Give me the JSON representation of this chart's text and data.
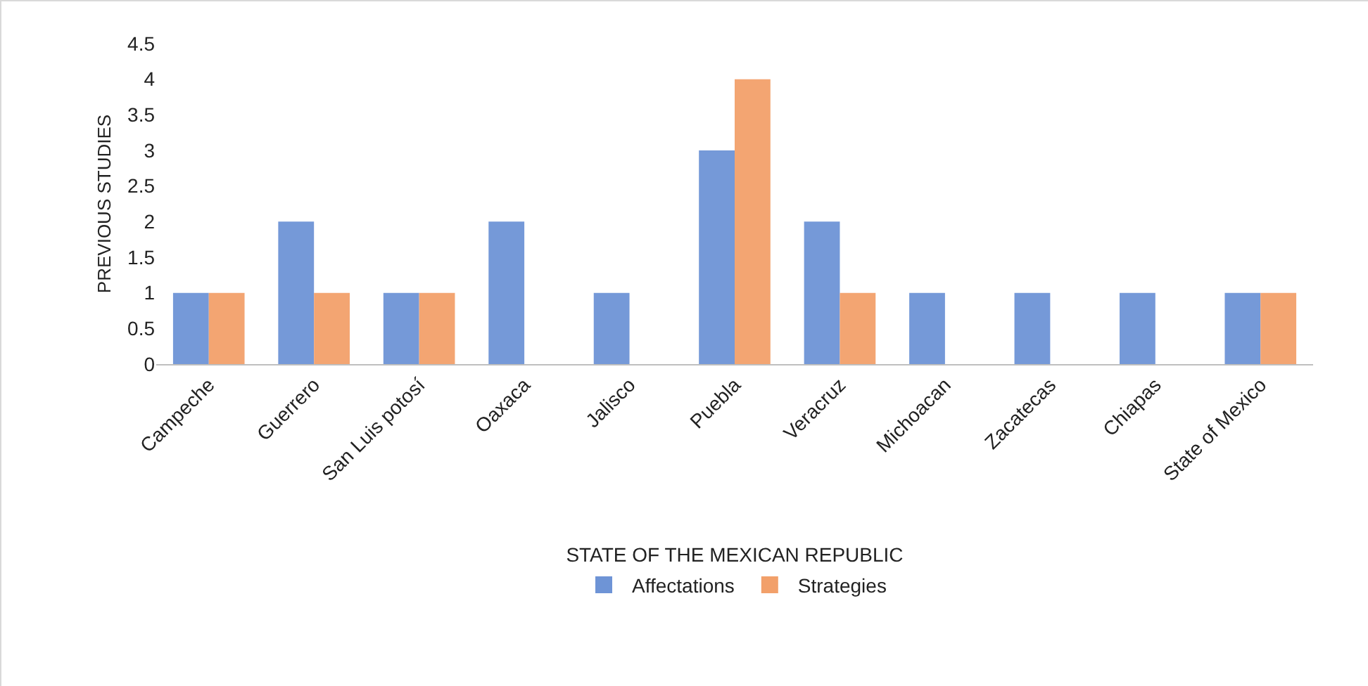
{
  "chart_data": {
    "type": "bar",
    "xlabel": "STATE OF THE MEXICAN REPUBLIC",
    "ylabel": "PREVIOUS STUDIES",
    "categories": [
      "Campeche",
      "Guerrero",
      "San Luis potosí",
      "Oaxaca",
      "Jalisco",
      "Puebla",
      "Veracruz",
      "Michoacan",
      "Zacatecas",
      "Chiapas",
      "State of Mexico"
    ],
    "series": [
      {
        "name": "Affectations",
        "color": "#6e94d6",
        "values": [
          1,
          2,
          1,
          2,
          1,
          3,
          2,
          1,
          1,
          1,
          1
        ]
      },
      {
        "name": "Strategies",
        "color": "#f2a06a",
        "values": [
          1,
          1,
          1,
          null,
          null,
          4,
          1,
          null,
          null,
          null,
          1
        ]
      }
    ],
    "ylim": [
      0,
      4.5
    ],
    "yticks": [
      0,
      0.5,
      1,
      1.5,
      2,
      2.5,
      3,
      3.5,
      4,
      4.5
    ],
    "grid": false,
    "legend": "bottom"
  }
}
